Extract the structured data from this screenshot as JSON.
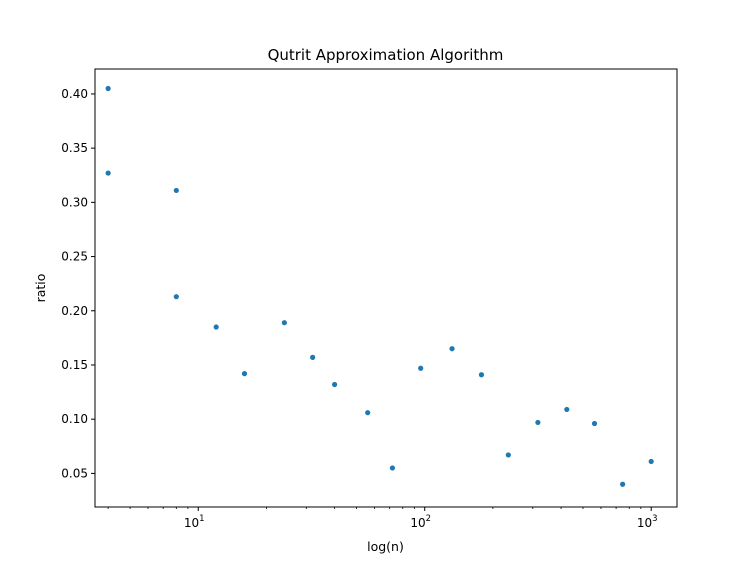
{
  "chart_data": {
    "type": "scatter",
    "title": "Qutrit Approximation Algorithm",
    "xlabel": "log(n)",
    "ylabel": "ratio",
    "xscale": "log",
    "xlim": [
      3.5,
      1300
    ],
    "ylim": [
      0.019,
      0.423
    ],
    "grid": false,
    "marker_color": "#1f77b4",
    "x_ticks": [
      {
        "base": "10",
        "exp": "1",
        "value": 10
      },
      {
        "base": "10",
        "exp": "2",
        "value": 100
      },
      {
        "base": "10",
        "exp": "3",
        "value": 1000
      }
    ],
    "y_ticks": [
      "0.05",
      "0.10",
      "0.15",
      "0.20",
      "0.25",
      "0.30",
      "0.35",
      "0.40"
    ],
    "points": [
      {
        "x": 4,
        "y": 0.405
      },
      {
        "x": 4,
        "y": 0.327
      },
      {
        "x": 8,
        "y": 0.311
      },
      {
        "x": 8,
        "y": 0.213
      },
      {
        "x": 12,
        "y": 0.185
      },
      {
        "x": 16,
        "y": 0.142
      },
      {
        "x": 24,
        "y": 0.189
      },
      {
        "x": 32,
        "y": 0.157
      },
      {
        "x": 40,
        "y": 0.132
      },
      {
        "x": 56,
        "y": 0.106
      },
      {
        "x": 72,
        "y": 0.055
      },
      {
        "x": 96,
        "y": 0.147
      },
      {
        "x": 132,
        "y": 0.165
      },
      {
        "x": 178,
        "y": 0.141
      },
      {
        "x": 234,
        "y": 0.067
      },
      {
        "x": 316,
        "y": 0.097
      },
      {
        "x": 424,
        "y": 0.109
      },
      {
        "x": 562,
        "y": 0.096
      },
      {
        "x": 748,
        "y": 0.04
      },
      {
        "x": 1000,
        "y": 0.061
      }
    ]
  }
}
